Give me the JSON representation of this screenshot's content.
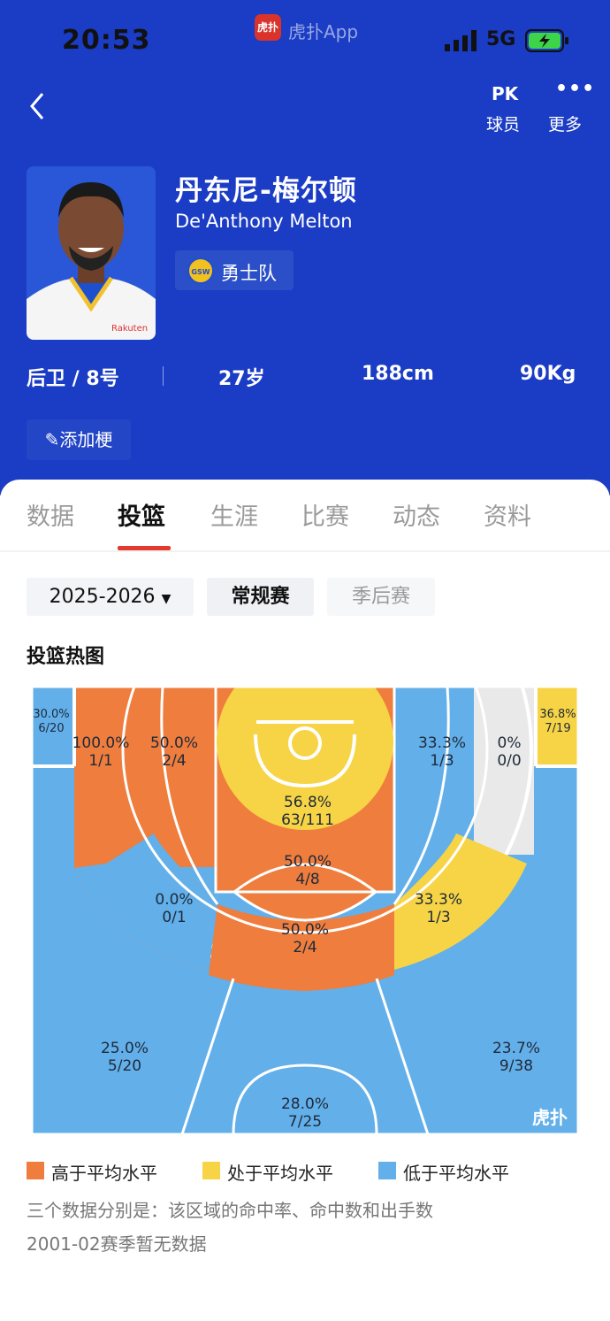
{
  "status_bar": {
    "time": "20:53",
    "app_logo": "虎扑",
    "app_name": "虎扑App",
    "network": "5G"
  },
  "nav": {
    "pk_icon": "PK",
    "pk_label": "球员",
    "more_label": "更多"
  },
  "player": {
    "name_cn": "丹东尼-梅尔顿",
    "name_en": "De'Anthony Melton",
    "team": "勇士队",
    "team_badge": "GSW",
    "jersey_text": "Rakuten",
    "position": "后卫 / 8号",
    "age": "27岁",
    "height": "188cm",
    "weight": "90Kg"
  },
  "add_button": "添加梗",
  "tabs": [
    "数据",
    "投篮",
    "生涯",
    "比赛",
    "动态",
    "资料"
  ],
  "active_tab": 1,
  "filters": {
    "season": "2025-2026",
    "regular": "常规赛",
    "playoffs": "季后赛"
  },
  "heatmap_title": "投篮热图",
  "colors": {
    "above": "#ef7d3d",
    "average": "#f7d445",
    "below": "#63afe9",
    "none": "#e9e9e9",
    "header_bg": "#1b3cc4"
  },
  "zones": [
    {
      "pct": "30.0%",
      "made": "6/20",
      "level": "below"
    },
    {
      "pct": "100.0%",
      "made": "1/1",
      "level": "above"
    },
    {
      "pct": "50.0%",
      "made": "2/4",
      "level": "above"
    },
    {
      "pct": "56.8%",
      "made": "63/111",
      "level": "average"
    },
    {
      "pct": "33.3%",
      "made": "1/3",
      "level": "below"
    },
    {
      "pct": "0%",
      "made": "0/0",
      "level": "none"
    },
    {
      "pct": "36.8%",
      "made": "7/19",
      "level": "average"
    },
    {
      "pct": "50.0%",
      "made": "4/8",
      "level": "above"
    },
    {
      "pct": "0.0%",
      "made": "0/1",
      "level": "below"
    },
    {
      "pct": "33.3%",
      "made": "1/3",
      "level": "average"
    },
    {
      "pct": "50.0%",
      "made": "2/4",
      "level": "above"
    },
    {
      "pct": "25.0%",
      "made": "5/20",
      "level": "below"
    },
    {
      "pct": "23.7%",
      "made": "9/38",
      "level": "below"
    },
    {
      "pct": "28.0%",
      "made": "7/25",
      "level": "below"
    }
  ],
  "watermark": "虎扑",
  "legend": {
    "above": "高于平均水平",
    "average": "处于平均水平",
    "below": "低于平均水平"
  },
  "note1": "三个数据分别是：该区域的命中率、命中数和出手数",
  "note2": "2001-02赛季暂无数据"
}
